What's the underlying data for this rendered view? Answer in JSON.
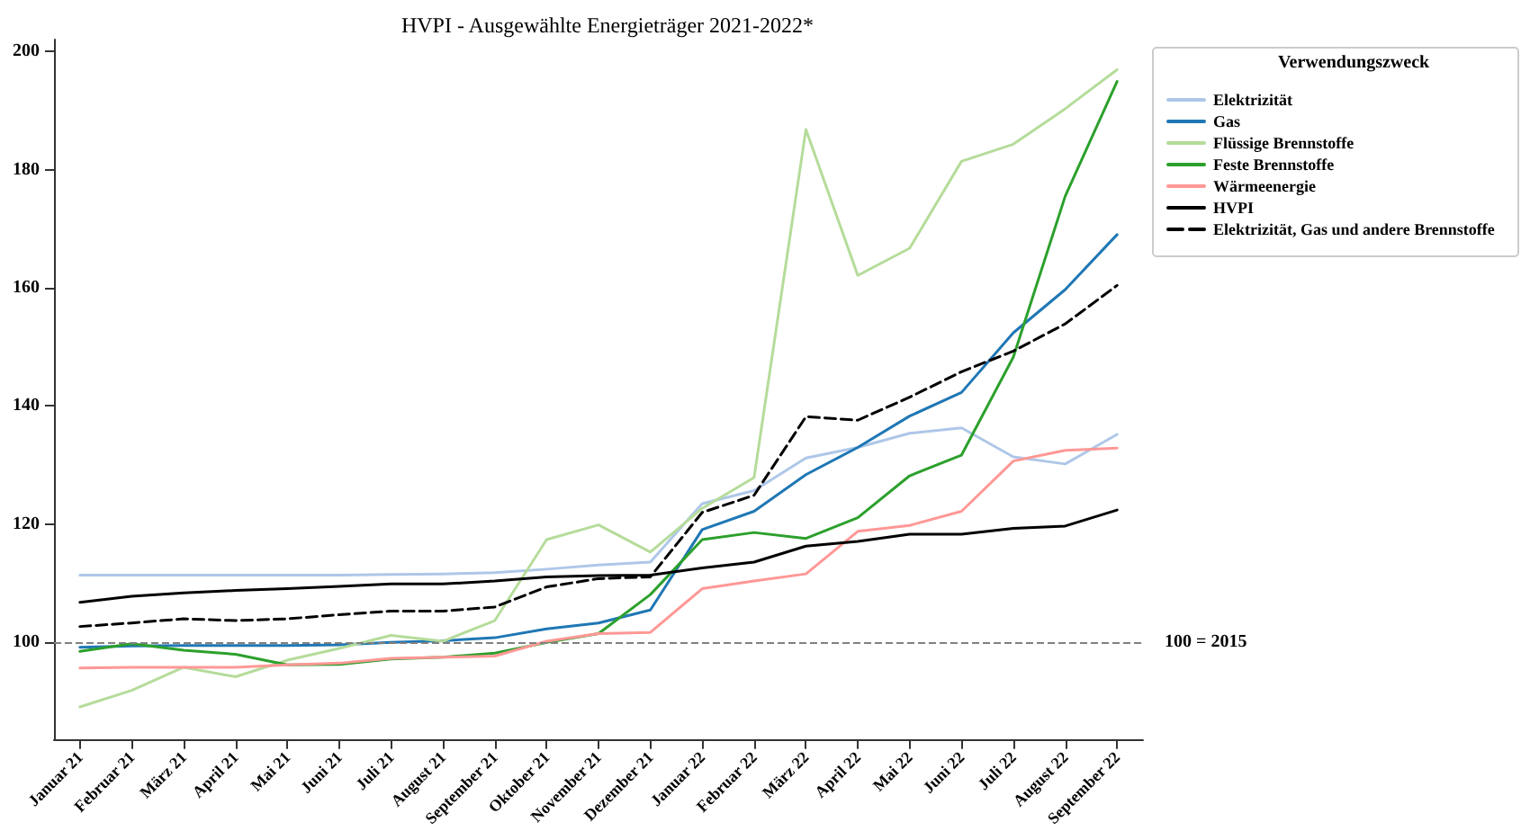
{
  "chart_data": {
    "type": "line",
    "title": "HVPI - Ausgewählte Energieträger 2021-2022*",
    "categories": [
      "Januar 21",
      "Februar 21",
      "März 21",
      "April 21",
      "Mai 21",
      "Juni 21",
      "Juli 21",
      "August 21",
      "September 21",
      "Oktober 21",
      "November 21",
      "Dezember 21",
      "Januar 22",
      "Februar 22",
      "März 22",
      "April 22",
      "Mai 22",
      "Juni 22",
      "Juli 22",
      "August 22",
      "September 22"
    ],
    "series": [
      {
        "name": "Elektrizität",
        "color": "#aec7e8",
        "values": [
          111.4,
          111.4,
          111.4,
          111.4,
          111.4,
          111.4,
          111.5,
          111.6,
          111.8,
          112.4,
          113.1,
          113.6,
          123.5,
          125.7,
          131.2,
          133,
          135.4,
          136.3,
          131.4,
          130.2,
          135.2
        ]
      },
      {
        "name": "Gas",
        "color": "#1f77b4",
        "values": [
          99.2,
          99.4,
          99.5,
          99.5,
          99.5,
          99.6,
          100,
          100.3,
          100.8,
          102.3,
          103.3,
          105.5,
          119.1,
          122.2,
          128.4,
          133,
          138.3,
          142.3,
          152.4,
          159.7,
          169
        ]
      },
      {
        "name": "Flüssige Brennstoffe",
        "color": "#b5dc9a",
        "values": [
          89.1,
          91.9,
          95.8,
          94.2,
          97,
          99,
          101.2,
          100.2,
          103.7,
          117.4,
          119.9,
          115.3,
          122.7,
          127.9,
          186.8,
          162.1,
          166.7,
          181.4,
          184.3,
          190.3,
          196.9
        ]
      },
      {
        "name": "Feste Brennstoffe",
        "color": "#2ca02c",
        "values": [
          98.5,
          99.8,
          98.7,
          98,
          96.2,
          96.3,
          97.2,
          97.5,
          98.2,
          100,
          101.5,
          108.1,
          117.4,
          118.6,
          117.6,
          121.1,
          128.2,
          131.7,
          148.3,
          175.5,
          194.9
        ]
      },
      {
        "name": "Wärmeenergie",
        "color": "#ff9896",
        "values": [
          95.7,
          95.8,
          95.8,
          95.8,
          96.2,
          96.5,
          97.3,
          97.5,
          97.7,
          100.2,
          101.5,
          101.7,
          109.1,
          110.4,
          111.6,
          118.8,
          119.8,
          122.2,
          130.7,
          132.5,
          132.9
        ]
      },
      {
        "name": "HVPI",
        "color": "#000000",
        "values": [
          106.8,
          107.8,
          108.4,
          108.8,
          109.1,
          109.5,
          109.9,
          109.9,
          110.4,
          111.1,
          111.3,
          111.4,
          112.6,
          113.6,
          116.3,
          117.1,
          118.3,
          118.3,
          119.3,
          119.7,
          122.4
        ]
      },
      {
        "name": "Elektrizität, Gas und andere Brennstoffe",
        "color": "#000000",
        "line_style": "dashed",
        "values": [
          102.7,
          103.3,
          104,
          103.7,
          104,
          104.7,
          105.3,
          105.3,
          106,
          109.4,
          110.8,
          111.1,
          122,
          124.9,
          138.2,
          137.6,
          141.5,
          145.8,
          149.3,
          153.9,
          160.4
        ]
      }
    ],
    "ylim": [
      83.5,
      202
    ],
    "yticks": [
      100,
      120,
      140,
      160,
      180,
      200
    ],
    "grid": false,
    "legend": "right",
    "legend_title": "Verwendungszweck",
    "marker": "none",
    "line_style": "solid",
    "ref_lines": [
      {
        "axis": "y",
        "value": 100,
        "label": "100 = 2015",
        "color": "#808080",
        "line_style": "dashed"
      }
    ]
  }
}
